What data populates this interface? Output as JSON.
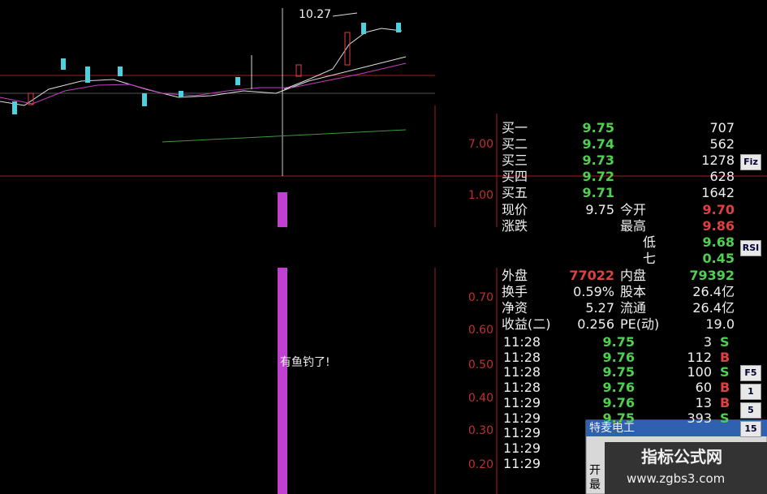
{
  "chart_annotation": "10.27",
  "axis_labels": [
    "7.00",
    "1.00",
    "0.70",
    "0.60",
    "0.50",
    "0.40",
    "0.30",
    "0.20"
  ],
  "signal": "有鱼钓了!",
  "bids": [
    {
      "label": "买一",
      "price": "9.75",
      "volume": "707"
    },
    {
      "label": "买二",
      "price": "9.74",
      "volume": "562"
    },
    {
      "label": "买三",
      "price": "9.73",
      "volume": "1278"
    },
    {
      "label": "买四",
      "price": "9.72",
      "volume": "628"
    },
    {
      "label": "买五",
      "price": "9.71",
      "volume": "1642"
    }
  ],
  "stats": [
    {
      "l1": "现价",
      "v1": "9.75",
      "l2": "今开",
      "v2": "9.70"
    },
    {
      "l1": "涨跌",
      "l2": "最高",
      "v2": "9.86"
    },
    {
      "l2": "低",
      "v2": "9.68"
    },
    {
      "l2": "七",
      "v2": "0.45"
    },
    {
      "l1": "外盘",
      "v1": "77022",
      "l2": "内盘",
      "v2": "79392"
    },
    {
      "l1": "换手",
      "v1": "0.59%",
      "l2": "股本",
      "v2": "26.4亿"
    },
    {
      "l1": "净资",
      "v1": "5.27",
      "l2": "流通",
      "v2": "26.4亿"
    },
    {
      "l1": "收益(二)",
      "v1": "0.256",
      "l2": "PE(动)",
      "v2": "19.0"
    }
  ],
  "trades": [
    {
      "time": "11:28",
      "price": "9.75",
      "volume": "3",
      "side": "S"
    },
    {
      "time": "11:28",
      "price": "9.76",
      "volume": "112",
      "side": "B"
    },
    {
      "time": "11:28",
      "price": "9.75",
      "volume": "100",
      "side": "S"
    },
    {
      "time": "11:28",
      "price": "9.76",
      "volume": "60",
      "side": "B"
    },
    {
      "time": "11:29",
      "price": "9.76",
      "volume": "13",
      "side": "B"
    },
    {
      "time": "11:29",
      "price": "9.75",
      "volume": "393",
      "side": "S"
    },
    {
      "time": "11:29"
    },
    {
      "time": "11:29"
    },
    {
      "time": "11:29"
    }
  ],
  "popup": {
    "title": "特麦电工",
    "lines": [
      "开",
      "最"
    ]
  },
  "toolbar": [
    "Fiz",
    "RSI",
    "F5",
    "1",
    "5",
    "15"
  ],
  "watermark": {
    "title": "指标公式网",
    "url": "www.zgbs3.com"
  }
}
